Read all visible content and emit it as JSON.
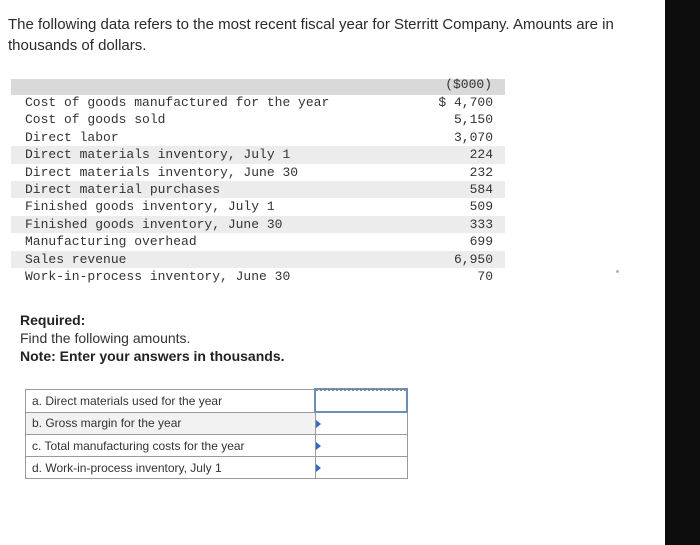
{
  "intro": "The following data refers to the most recent fiscal year for Sterritt Company. Amounts are in thousands of dollars.",
  "table": {
    "unit_header": "($000)",
    "rows": [
      {
        "label": "Cost of goods manufactured for the year",
        "value": "$ 4,700"
      },
      {
        "label": "Cost of goods sold",
        "value": "5,150"
      },
      {
        "label": "Direct labor",
        "value": "3,070"
      },
      {
        "label": "Direct materials inventory, July 1",
        "value": "224"
      },
      {
        "label": "Direct materials inventory, June 30",
        "value": "232"
      },
      {
        "label": "Direct material purchases",
        "value": "584"
      },
      {
        "label": "Finished goods inventory, July 1",
        "value": "509"
      },
      {
        "label": "Finished goods inventory, June 30",
        "value": "333"
      },
      {
        "label": "Manufacturing overhead",
        "value": "699"
      },
      {
        "label": "Sales revenue",
        "value": "6,950"
      },
      {
        "label": "Work-in-process inventory, June 30",
        "value": "70"
      }
    ]
  },
  "required": {
    "title": "Required:",
    "instruction": "Find the following amounts.",
    "note": "Note: Enter your answers in thousands."
  },
  "answers": [
    {
      "label": "a. Direct materials used for the year",
      "value": ""
    },
    {
      "label": "b. Gross margin for the year",
      "value": ""
    },
    {
      "label": "c. Total manufacturing costs for the year",
      "value": ""
    },
    {
      "label": "d. Work-in-process inventory, July 1",
      "value": ""
    }
  ],
  "colors": {
    "input_marker": "#2f6bbf",
    "active_border": "#6a8fb8"
  }
}
